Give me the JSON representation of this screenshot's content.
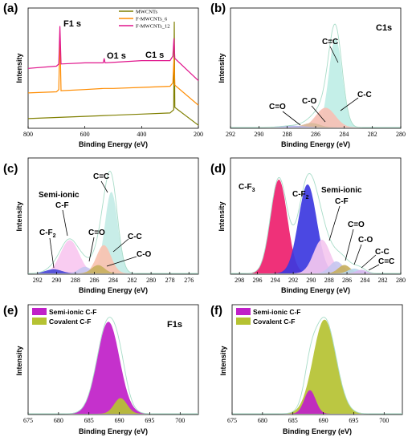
{
  "chart_data": [
    {
      "id": "a",
      "panel_label": "(a)",
      "type": "line",
      "xlabel": "Binding Energy (eV)",
      "ylabel": "Intensity",
      "xlim": [
        800,
        200
      ],
      "xticks": [
        "800",
        "600",
        "400",
        "200"
      ],
      "legend": {
        "position": "top-right",
        "entries": [
          {
            "name": "MWCNTs",
            "color": "#7f7f00"
          },
          {
            "name": "F-MWCNTs_6",
            "color": "#ff8c00"
          },
          {
            "name": "F-MWCNTs_12",
            "color": "#e0158c"
          }
        ]
      },
      "annotations": [
        {
          "text": "F1 s",
          "x": 688,
          "y_level": 0.93
        },
        {
          "text": "O1 s",
          "x": 532,
          "y_level": 0.52
        },
        {
          "text": "C1 s",
          "x": 284,
          "y_level": 0.65
        }
      ],
      "series": [
        {
          "name": "MWCNTs",
          "color": "#7f7f00",
          "points": [
            [
              800,
              0.08
            ],
            [
              700,
              0.09
            ],
            [
              600,
              0.1
            ],
            [
              500,
              0.11
            ],
            [
              400,
              0.12
            ],
            [
              300,
              0.13
            ],
            [
              287,
              0.16
            ],
            [
              285,
              0.95
            ],
            [
              283,
              0.18
            ],
            [
              200,
              0.02
            ]
          ]
        },
        {
          "name": "F-MWCNTs_6",
          "color": "#ff8c00",
          "points": [
            [
              800,
              0.31
            ],
            [
              700,
              0.32
            ],
            [
              692,
              0.34
            ],
            [
              688,
              0.82
            ],
            [
              684,
              0.33
            ],
            [
              600,
              0.34
            ],
            [
              532,
              0.35
            ],
            [
              500,
              0.35
            ],
            [
              400,
              0.36
            ],
            [
              300,
              0.37
            ],
            [
              290,
              0.4
            ],
            [
              286,
              0.62
            ],
            [
              283,
              0.38
            ],
            [
              200,
              0.2
            ]
          ]
        },
        {
          "name": "F-MWCNTs_12",
          "color": "#e0158c",
          "points": [
            [
              800,
              0.53
            ],
            [
              700,
              0.55
            ],
            [
              692,
              0.57
            ],
            [
              688,
              0.91
            ],
            [
              684,
              0.57
            ],
            [
              600,
              0.58
            ],
            [
              535,
              0.58
            ],
            [
              532,
              0.62
            ],
            [
              529,
              0.58
            ],
            [
              400,
              0.6
            ],
            [
              300,
              0.6
            ],
            [
              290,
              0.64
            ],
            [
              286,
              0.8
            ],
            [
              283,
              0.62
            ],
            [
              200,
              0.42
            ]
          ]
        }
      ]
    },
    {
      "id": "b",
      "panel_label": "(b)",
      "type": "area",
      "title_text": "C1s",
      "xlabel": "Binding Energy (eV)",
      "ylabel": "Intensity",
      "xlim": [
        292,
        280
      ],
      "xticks": [
        "292",
        "290",
        "288",
        "286",
        "284",
        "282",
        "280"
      ],
      "peaks": [
        {
          "label": "C=C",
          "center": 284.6,
          "height": 1.0,
          "fwhm": 1.1,
          "color": "#bfeee6"
        },
        {
          "label": "C-C",
          "center": 285.3,
          "height": 0.22,
          "fwhm": 1.6,
          "color": "#f6c0b4"
        },
        {
          "label": "C-O",
          "center": 286.3,
          "height": 0.05,
          "fwhm": 1.4,
          "color": "#d9b99a"
        },
        {
          "label": "C=O",
          "center": 287.6,
          "height": 0.02,
          "fwhm": 2.0,
          "color": "#b6b6ee"
        }
      ],
      "envelope_color": "#a8dcc8"
    },
    {
      "id": "c",
      "panel_label": "(c)",
      "type": "area",
      "xlabel": "Binding Energy (eV)",
      "ylabel": "Intensity",
      "xlim": [
        293,
        275
      ],
      "xticks": [
        "292",
        "290",
        "288",
        "286",
        "284",
        "282",
        "280",
        "278",
        "276"
      ],
      "peaks": [
        {
          "label": "C=C",
          "center": 284.2,
          "height": 0.98,
          "fwhm": 1.6,
          "color": "#c3ece6"
        },
        {
          "label": "C-C",
          "center": 285.0,
          "height": 0.34,
          "fwhm": 1.8,
          "color": "#f8c2b0"
        },
        {
          "label": "Semi-ionic C-F",
          "center": 288.6,
          "height": 0.4,
          "fwhm": 2.3,
          "color": "#f8c8f0"
        },
        {
          "label": "C=O",
          "center": 287.0,
          "height": 0.08,
          "fwhm": 1.5,
          "color": "#c7c7f0"
        },
        {
          "label": "C-O",
          "center": 285.6,
          "height": 0.1,
          "fwhm": 1.6,
          "color": "#c8b060"
        },
        {
          "label": "C-F2",
          "center": 290.3,
          "height": 0.05,
          "fwhm": 2.0,
          "color": "#4a4ad8"
        }
      ],
      "envelope_color": "#a8dcc8",
      "annotations": [
        {
          "text": "Semi-ionic",
          "for": "Semi-ionic C-F"
        },
        {
          "text": "C-F",
          "for": "Semi-ionic C-F"
        }
      ]
    },
    {
      "id": "d",
      "panel_label": "(d)",
      "type": "area",
      "xlabel": "Binding Energy (eV)",
      "ylabel": "Intensity",
      "xlim": [
        299,
        280
      ],
      "xticks": [
        "298",
        "296",
        "294",
        "292",
        "290",
        "288",
        "286",
        "284",
        "282",
        "280"
      ],
      "peaks": [
        {
          "label": "C-F3",
          "center": 293.6,
          "height": 0.78,
          "fwhm": 2.2,
          "color": "#ee1f6e"
        },
        {
          "label": "C-F2",
          "center": 290.4,
          "height": 0.74,
          "fwhm": 2.4,
          "color": "#3c38e0"
        },
        {
          "label": "Semi-ionic C-F",
          "center": 288.8,
          "height": 0.28,
          "fwhm": 2.2,
          "color": "#f4c8ef"
        },
        {
          "label": "C=O",
          "center": 287.2,
          "height": 0.1,
          "fwhm": 1.8,
          "color": "#c7c7f0"
        },
        {
          "label": "C-O",
          "center": 286.3,
          "height": 0.07,
          "fwhm": 1.6,
          "color": "#c8b060"
        },
        {
          "label": "C-C",
          "center": 285.2,
          "height": 0.04,
          "fwhm": 1.6,
          "color": "#b8d8ef"
        },
        {
          "label": "C=C",
          "center": 284.4,
          "height": 0.03,
          "fwhm": 1.4,
          "color": "#d8b8ef"
        }
      ],
      "envelope_color": "#a8dcc8",
      "annotations": [
        {
          "text": "Semi-ionic",
          "for": "Semi-ionic C-F"
        },
        {
          "text": "C-F",
          "for": "Semi-ionic C-F"
        }
      ]
    },
    {
      "id": "e",
      "panel_label": "(e)",
      "type": "area",
      "title_text": "F1s",
      "xlabel": "Binding Energy (eV)",
      "ylabel": "Intensity",
      "xlim": [
        675,
        703
      ],
      "xticks": [
        "675",
        "680",
        "685",
        "690",
        "695",
        "700"
      ],
      "legend": {
        "position": "top-left",
        "entries": [
          {
            "name": "Semi-ionic C-F",
            "color": "#c020c8"
          },
          {
            "name": "Covalent C-F",
            "color": "#b5c232"
          }
        ]
      },
      "peaks": [
        {
          "label": "Semi-ionic C-F",
          "center": 688.2,
          "height": 1.0,
          "fwhm": 4.3,
          "color": "#c020c8"
        },
        {
          "label": "Covalent C-F",
          "center": 690.2,
          "height": 0.17,
          "fwhm": 2.5,
          "color": "#b5c232"
        }
      ],
      "envelope_color": "#a8dcc8"
    },
    {
      "id": "f",
      "panel_label": "(f)",
      "type": "area",
      "xlabel": "Binding Energy (eV)",
      "ylabel": "Intensity",
      "xlim": [
        675,
        703
      ],
      "xticks": [
        "675",
        "680",
        "685",
        "690",
        "695",
        "700"
      ],
      "legend": {
        "position": "top-left",
        "entries": [
          {
            "name": "Semi-ionic C-F",
            "color": "#c020c8"
          },
          {
            "name": "Covalent C-F",
            "color": "#b5c232"
          }
        ]
      },
      "peaks": [
        {
          "label": "Covalent C-F",
          "center": 690.2,
          "height": 1.0,
          "fwhm": 4.4,
          "color": "#b5c232"
        },
        {
          "label": "Semi-ionic C-F",
          "center": 687.8,
          "height": 0.25,
          "fwhm": 2.2,
          "color": "#c020c8"
        }
      ],
      "envelope_color": "#a8dcc8"
    }
  ]
}
